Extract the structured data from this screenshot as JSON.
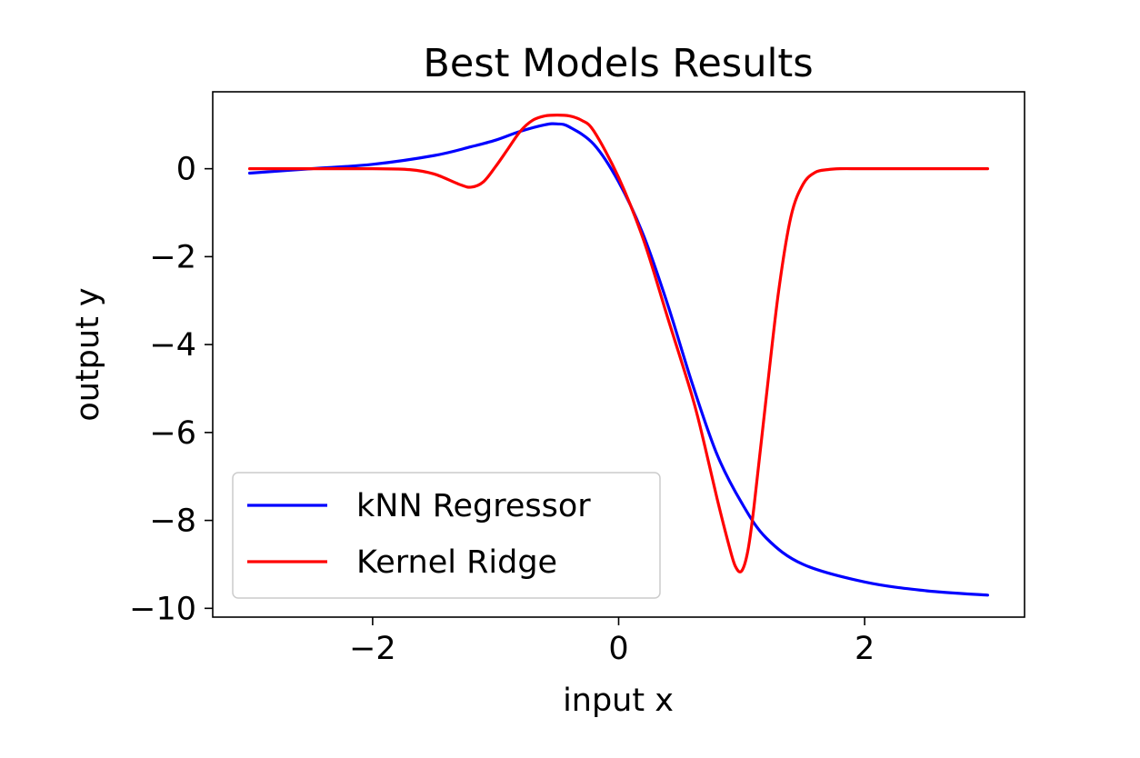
{
  "chart_data": {
    "type": "line",
    "title": "Best Models Results",
    "xlabel": "input x",
    "ylabel": "output y",
    "xlim": [
      -3.3,
      3.3
    ],
    "ylim": [
      -10.2,
      1.75
    ],
    "xticks": [
      -2,
      0,
      2
    ],
    "yticks": [
      0,
      -2,
      -4,
      -6,
      -8,
      -10
    ],
    "xtick_labels": [
      "−2",
      "0",
      "2"
    ],
    "ytick_labels": [
      "0",
      "−2",
      "−4",
      "−6",
      "−8",
      "−10"
    ],
    "grid": false,
    "legend_position": "lower-left",
    "series": [
      {
        "name": "kNN Regressor",
        "color": "#0000ff",
        "x": [
          -3.0,
          -2.5,
          -2.0,
          -1.5,
          -1.2,
          -1.0,
          -0.8,
          -0.6,
          -0.5,
          -0.4,
          -0.2,
          0.0,
          0.2,
          0.4,
          0.6,
          0.8,
          1.0,
          1.2,
          1.5,
          2.0,
          2.5,
          3.0
        ],
        "y": [
          -0.1,
          0.0,
          0.1,
          0.3,
          0.5,
          0.65,
          0.85,
          1.0,
          1.02,
          0.95,
          0.55,
          -0.3,
          -1.5,
          -3.1,
          -4.9,
          -6.5,
          -7.6,
          -8.4,
          -9.0,
          -9.4,
          -9.6,
          -9.7
        ]
      },
      {
        "name": "Kernel Ridge",
        "color": "#ff0000",
        "x": [
          -3.0,
          -2.5,
          -2.0,
          -1.7,
          -1.5,
          -1.3,
          -1.2,
          -1.1,
          -1.0,
          -0.9,
          -0.8,
          -0.7,
          -0.6,
          -0.5,
          -0.4,
          -0.3,
          -0.2,
          0.0,
          0.2,
          0.4,
          0.6,
          0.7,
          0.8,
          0.9,
          0.95,
          1.0,
          1.05,
          1.1,
          1.2,
          1.3,
          1.4,
          1.5,
          1.6,
          1.7,
          1.8,
          2.0,
          2.5,
          3.0
        ],
        "y": [
          0.0,
          0.0,
          0.0,
          -0.02,
          -0.12,
          -0.35,
          -0.42,
          -0.3,
          0.05,
          0.45,
          0.85,
          1.1,
          1.2,
          1.22,
          1.2,
          1.1,
          0.85,
          -0.2,
          -1.6,
          -3.4,
          -5.2,
          -6.3,
          -7.5,
          -8.6,
          -9.05,
          -9.15,
          -8.7,
          -7.7,
          -5.2,
          -2.8,
          -1.1,
          -0.35,
          -0.08,
          -0.02,
          0.0,
          0.0,
          0.0,
          0.0
        ]
      }
    ]
  }
}
